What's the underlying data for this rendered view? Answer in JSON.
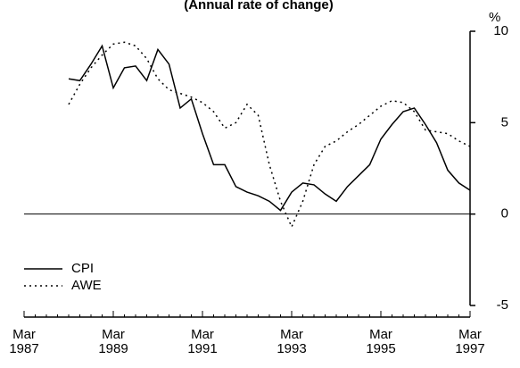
{
  "chart_data": {
    "type": "line",
    "title": "(Annual rate of change)",
    "y_unit": "%",
    "categories": [
      "Mar 1987",
      null,
      null,
      null,
      null,
      null,
      null,
      null,
      "Mar 1989",
      null,
      null,
      null,
      null,
      null,
      null,
      null,
      "Mar 1991",
      null,
      null,
      null,
      null,
      null,
      null,
      null,
      "Mar 1993",
      null,
      null,
      null,
      null,
      null,
      null,
      null,
      "Mar 1995",
      null,
      null,
      null,
      null,
      null,
      null,
      null,
      "Mar 1997"
    ],
    "series": [
      {
        "name": "CPI",
        "color": "#000000",
        "dash": "solid",
        "values": [
          null,
          null,
          null,
          null,
          7.4,
          7.3,
          8.2,
          9.2,
          6.9,
          8.0,
          8.1,
          7.3,
          9.0,
          8.2,
          5.8,
          6.3,
          4.4,
          2.7,
          2.7,
          1.5,
          1.2,
          1.0,
          0.7,
          0.2,
          1.2,
          1.7,
          1.6,
          1.1,
          0.7,
          1.5,
          2.1,
          2.7,
          4.1,
          4.9,
          5.6,
          5.8,
          4.9,
          3.9,
          2.4,
          1.7,
          1.3
        ]
      },
      {
        "name": "AWE",
        "color": "#000000",
        "dash": "dotted",
        "values": [
          null,
          null,
          null,
          null,
          6.0,
          7.1,
          8.0,
          8.7,
          9.3,
          9.4,
          9.2,
          8.5,
          7.4,
          6.8,
          6.6,
          6.4,
          6.1,
          5.6,
          4.7,
          5.0,
          6.0,
          5.4,
          2.7,
          0.7,
          -0.7,
          0.7,
          2.7,
          3.7,
          4.0,
          4.5,
          4.9,
          5.4,
          5.9,
          6.2,
          6.1,
          5.6,
          4.6,
          4.5,
          4.4,
          4.0,
          3.7
        ]
      }
    ],
    "ylim": [
      -5,
      10
    ],
    "yticks": [
      -5,
      0,
      5,
      10
    ],
    "legend": "lower left"
  }
}
